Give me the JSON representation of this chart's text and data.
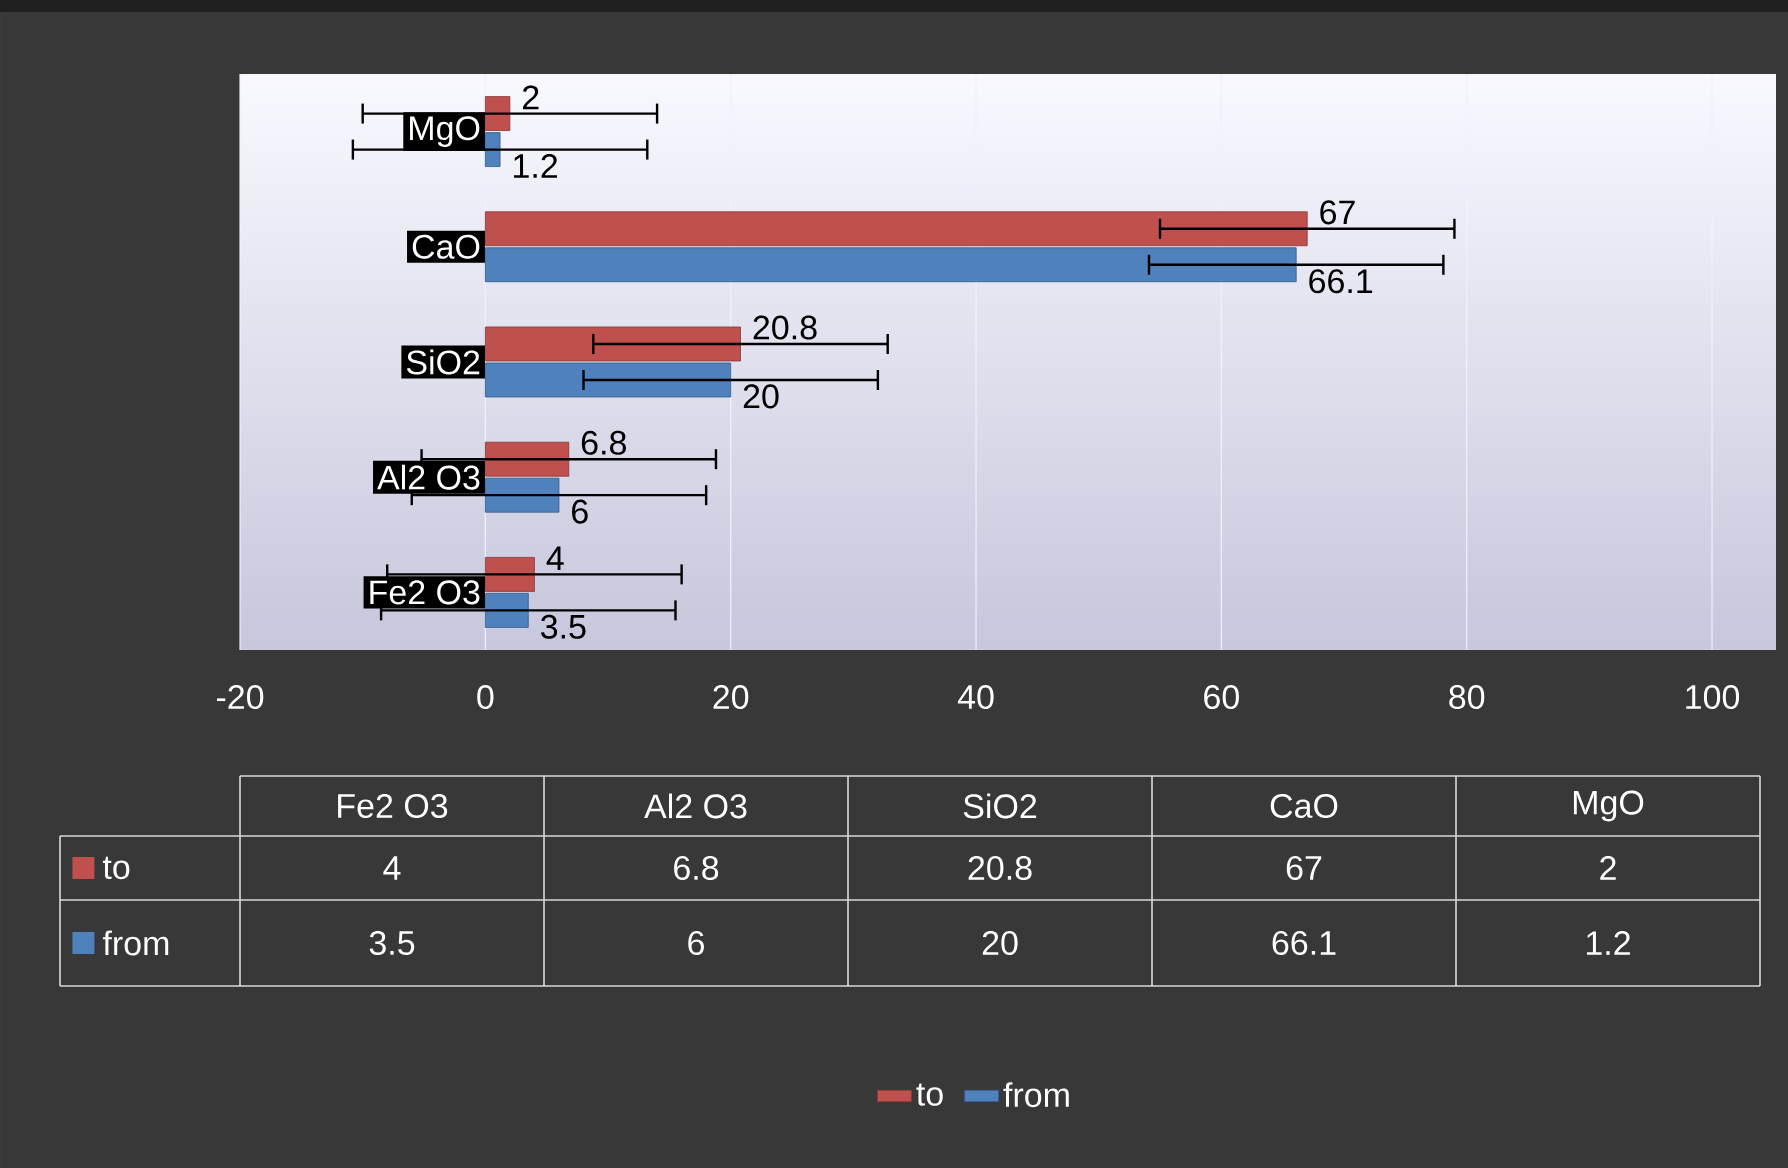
{
  "chart_data": {
    "type": "bar",
    "orientation": "horizontal",
    "categories": [
      "MgO",
      "CaO",
      "SiO2",
      "Al2 O3",
      "Fe2 O3"
    ],
    "series": [
      {
        "name": "to",
        "color": "#c0504d",
        "values": [
          2,
          67,
          20.8,
          6.8,
          4
        ],
        "errors": [
          12,
          12,
          12,
          12,
          12
        ]
      },
      {
        "name": "from",
        "color": "#4f81bd",
        "values": [
          1.2,
          66.1,
          20,
          6,
          3.5
        ],
        "errors": [
          12,
          12,
          12,
          12,
          12
        ]
      }
    ],
    "annotations": [
      "4",
      "6.8",
      "20.8",
      "67",
      "2",
      "3.5",
      "6",
      "20",
      "66.1",
      "1.2"
    ],
    "xlim": [
      -20,
      100
    ],
    "xticks": [
      -20,
      0,
      20,
      40,
      60,
      80,
      100
    ],
    "grid": "x",
    "legend": "bottom",
    "data_labels": true
  }
}
